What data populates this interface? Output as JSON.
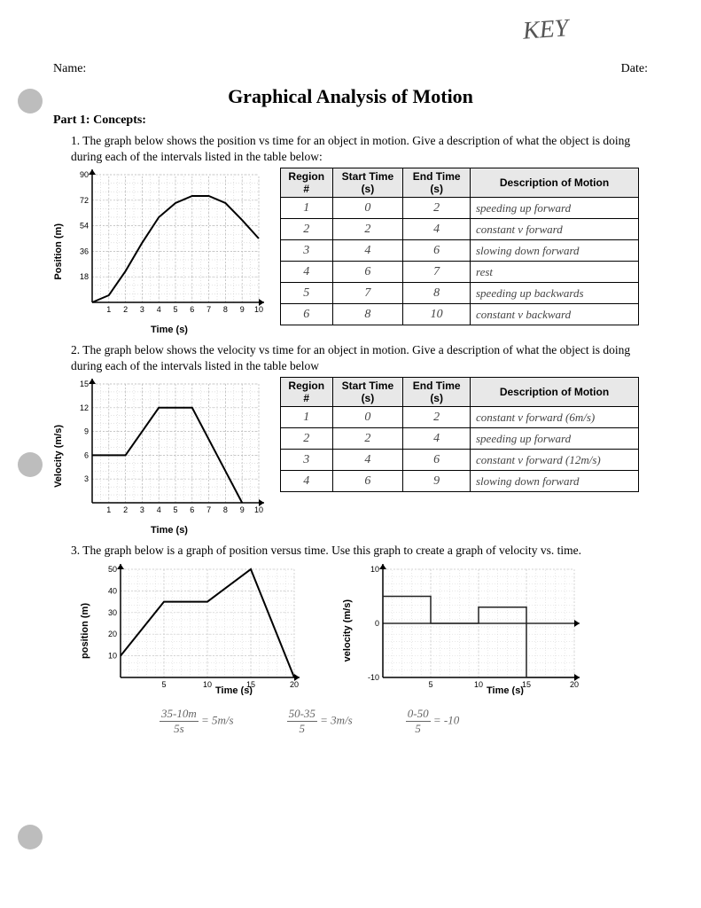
{
  "header": {
    "name_label": "Name:",
    "date_label": "Date:",
    "key": "KEY"
  },
  "title": "Graphical Analysis of Motion",
  "part1_label": "Part 1:  Concepts:",
  "q1": "1.  The graph below shows the position vs time for an object in motion.   Give a description of what the object is doing during each of the intervals listed in the table below:",
  "q2": "2.  The graph below shows the velocity vs time for an object in motion.   Give a description of what the object is doing during each of the intervals listed in the table below",
  "q3": "3.  The graph below is a graph of position versus time.  Use this graph to create a graph of velocity vs. time.",
  "table_headers": {
    "region": "Region #",
    "start": "Start Time (s)",
    "end": "End Time (s)",
    "desc": "Description of Motion"
  },
  "table1_rows": [
    {
      "r": "1",
      "s": "0",
      "e": "2",
      "d": "speeding up forward"
    },
    {
      "r": "2",
      "s": "2",
      "e": "4",
      "d": "constant v forward"
    },
    {
      "r": "3",
      "s": "4",
      "e": "6",
      "d": "slowing down forward"
    },
    {
      "r": "4",
      "s": "6",
      "e": "7",
      "d": "rest"
    },
    {
      "r": "5",
      "s": "7",
      "e": "8",
      "d": "speeding up backwards"
    },
    {
      "r": "6",
      "s": "8",
      "e": "10",
      "d": "constant v backward"
    }
  ],
  "table2_rows": [
    {
      "r": "1",
      "s": "0",
      "e": "2",
      "d": "constant v forward (6m/s)"
    },
    {
      "r": "2",
      "s": "2",
      "e": "4",
      "d": "speeding up forward"
    },
    {
      "r": "3",
      "s": "4",
      "e": "6",
      "d": "constant v forward (12m/s)"
    },
    {
      "r": "4",
      "s": "6",
      "e": "9",
      "d": "slowing down forward"
    }
  ],
  "chart1": {
    "type": "line",
    "xlabel": "Time (s)",
    "ylabel": "Position (m)",
    "xlim": [
      0,
      10
    ],
    "ylim": [
      0,
      90
    ],
    "xticks": [
      1,
      2,
      3,
      4,
      5,
      6,
      7,
      8,
      9,
      10
    ],
    "yticks": [
      18,
      36,
      54,
      72,
      90
    ],
    "points": [
      [
        0,
        0
      ],
      [
        1,
        5
      ],
      [
        2,
        22
      ],
      [
        3,
        42
      ],
      [
        4,
        60
      ],
      [
        5,
        70
      ],
      [
        6,
        75
      ],
      [
        7,
        75
      ],
      [
        8,
        70
      ],
      [
        9,
        58
      ],
      [
        10,
        45
      ]
    ],
    "line_color": "#000",
    "grid_color": "#b8b8b8",
    "bg": "#ffffff",
    "line_width": 2
  },
  "chart2": {
    "type": "line",
    "xlabel": "Time (s)",
    "ylabel": "Velocity (m/s)",
    "xlim": [
      0,
      10
    ],
    "ylim": [
      0,
      15
    ],
    "xticks": [
      1,
      2,
      3,
      4,
      5,
      6,
      7,
      8,
      9,
      10
    ],
    "yticks": [
      3,
      6,
      9,
      12,
      15
    ],
    "points": [
      [
        0,
        6
      ],
      [
        2,
        6
      ],
      [
        4,
        12
      ],
      [
        6,
        12
      ],
      [
        9,
        0
      ]
    ],
    "line_color": "#000",
    "grid_color": "#b8b8b8",
    "bg": "#ffffff",
    "line_width": 2
  },
  "chart3a": {
    "type": "line",
    "xlabel": "Time (s)",
    "ylabel": "position (m)",
    "xlim": [
      0,
      20
    ],
    "ylim": [
      0,
      50
    ],
    "xticks": [
      5,
      10,
      15,
      20
    ],
    "yticks": [
      10,
      20,
      30,
      40,
      50
    ],
    "points": [
      [
        0,
        10
      ],
      [
        5,
        35
      ],
      [
        10,
        35
      ],
      [
        15,
        50
      ],
      [
        20,
        0
      ]
    ],
    "line_color": "#000",
    "grid_color": "#c8c8c8",
    "bg": "#ffffff",
    "line_width": 2
  },
  "chart3b": {
    "type": "step",
    "xlabel": "Time (s)",
    "ylabel": "velocity (m/s)",
    "xlim": [
      0,
      20
    ],
    "ylim": [
      -10,
      10
    ],
    "xticks": [
      5,
      10,
      15,
      20
    ],
    "yticks": [
      -10,
      0,
      10
    ],
    "segments": [
      [
        0,
        5,
        5
      ],
      [
        5,
        0,
        10
      ],
      [
        10,
        3,
        15
      ],
      [
        15,
        -10,
        20
      ]
    ],
    "line_color": "#222",
    "grid_color": "#c8c8c8",
    "bg": "#ffffff",
    "line_width": 1.5
  },
  "calcs": {
    "c1_top": "35-10m",
    "c1_bot": "5s",
    "c1_eq": "= 5m/s",
    "c2_top": "50-35",
    "c2_bot": "5",
    "c2_eq": "= 3m/s",
    "c3_top": "0-50",
    "c3_bot": "5",
    "c3_eq": "= -10"
  }
}
